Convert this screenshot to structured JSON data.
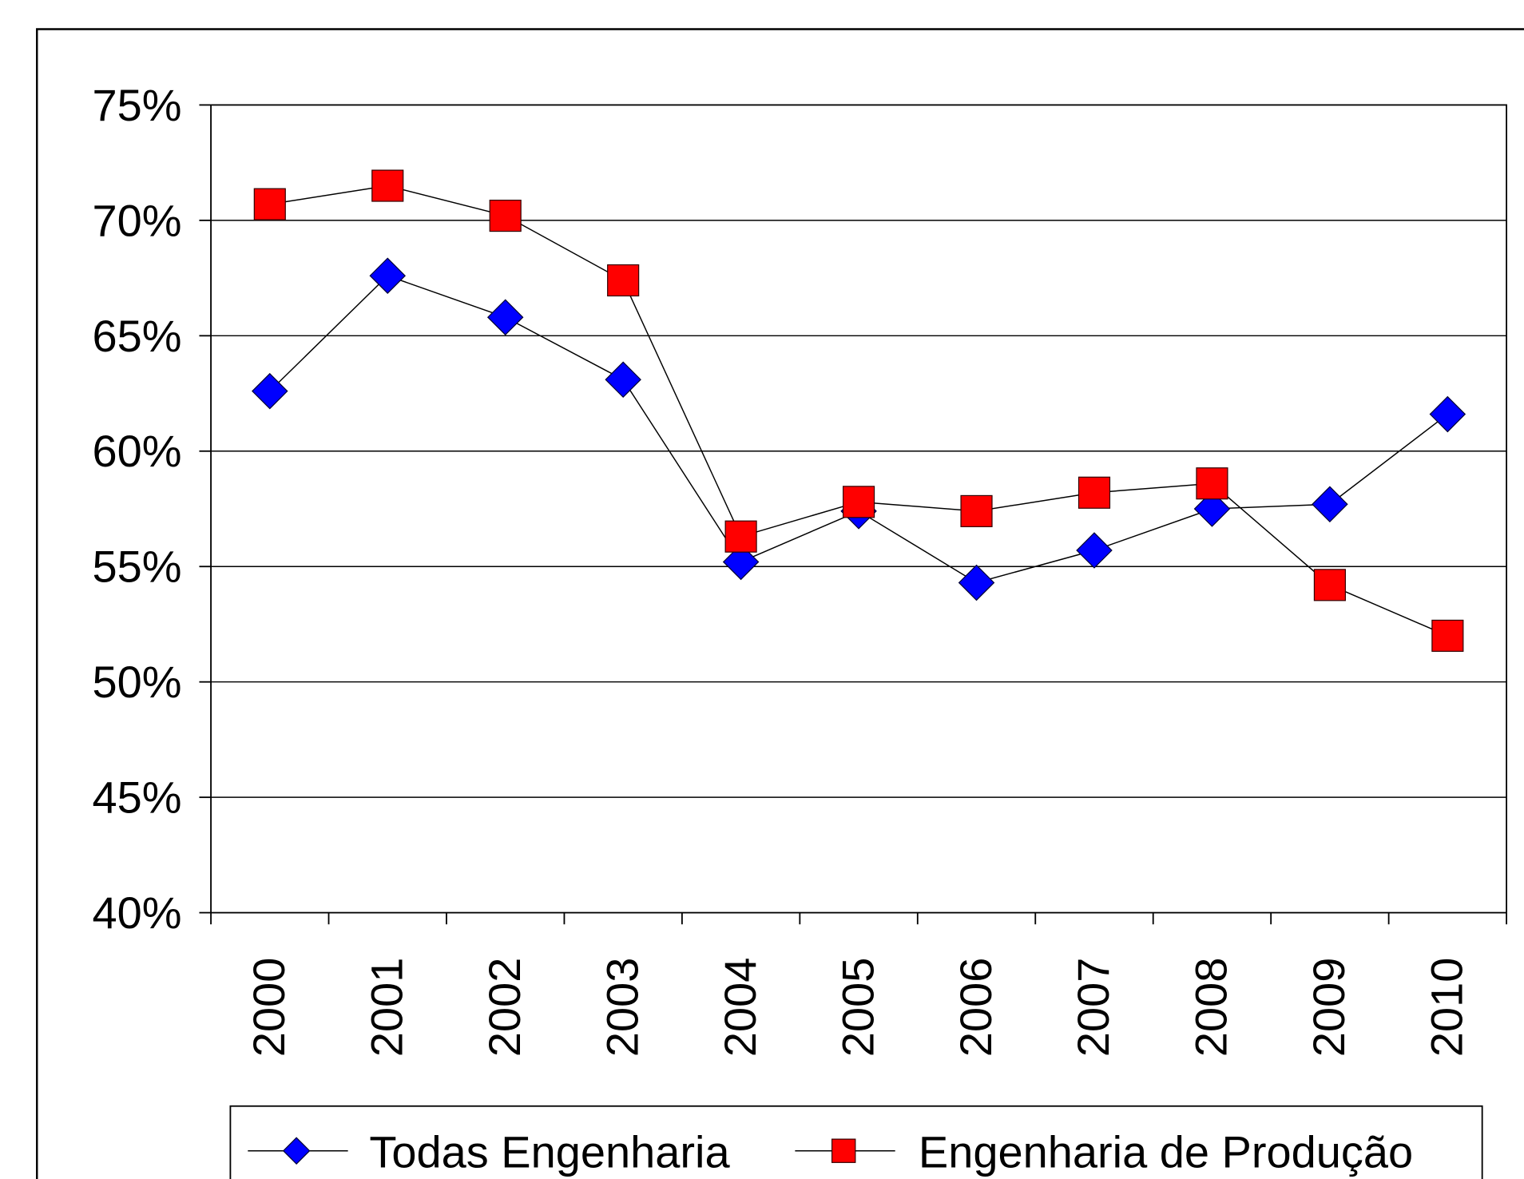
{
  "chart_data": {
    "type": "line",
    "categories": [
      "2000",
      "2001",
      "2002",
      "2003",
      "2004",
      "2005",
      "2006",
      "2007",
      "2008",
      "2009",
      "2010"
    ],
    "series": [
      {
        "name": "Todas Engenharia",
        "color": "#0000ff",
        "marker": "diamond",
        "values": [
          62.6,
          67.6,
          65.8,
          63.1,
          55.2,
          57.4,
          54.3,
          55.7,
          57.5,
          57.7,
          61.6
        ]
      },
      {
        "name": "Engenharia de Produção",
        "color": "#ff0000",
        "marker": "square",
        "values": [
          70.7,
          71.5,
          70.2,
          67.4,
          56.3,
          57.8,
          57.4,
          58.2,
          58.6,
          54.2,
          52.0
        ]
      }
    ],
    "ylim": [
      40,
      75
    ],
    "yticks": [
      {
        "value": 40,
        "label": "40%"
      },
      {
        "value": 45,
        "label": "45%"
      },
      {
        "value": 50,
        "label": "50%"
      },
      {
        "value": 55,
        "label": "55%"
      },
      {
        "value": 60,
        "label": "60%"
      },
      {
        "value": 65,
        "label": "65%"
      },
      {
        "value": 70,
        "label": "70%"
      },
      {
        "value": 75,
        "label": "75%"
      }
    ],
    "grid": true,
    "legend": "bottom"
  }
}
